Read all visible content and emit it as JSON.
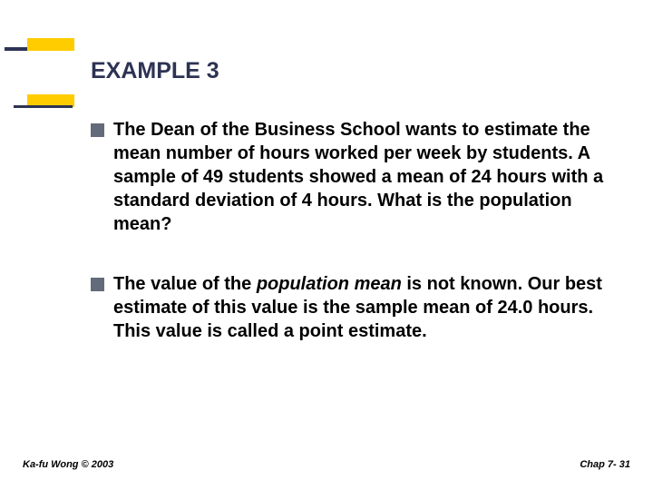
{
  "title": "EXAMPLE 3",
  "bullets": {
    "b1": "The Dean of the Business School wants to estimate the mean number of hours worked per week by students.  A sample of 49 students showed a mean of 24 hours with a standard deviation of 4 hours.  What is the population mean?",
    "b2_pre": "The value of the ",
    "b2_em": "population mean",
    "b2_post": " is not known. Our best estimate of this value is the sample mean of 24.0 hours. This value is called a point estimate."
  },
  "footer": {
    "left": "Ka-fu Wong © 2003",
    "right": "Chap 7- 31"
  },
  "styling": {
    "accent_color": "#ffcc00",
    "title_color": "#2d3353",
    "bullet_color": "#636b7a",
    "text_color": "#000000",
    "background_color": "#ffffff",
    "title_fontsize": 25,
    "body_fontsize": 20,
    "footer_fontsize": 11,
    "bullet_square_size": 15
  }
}
